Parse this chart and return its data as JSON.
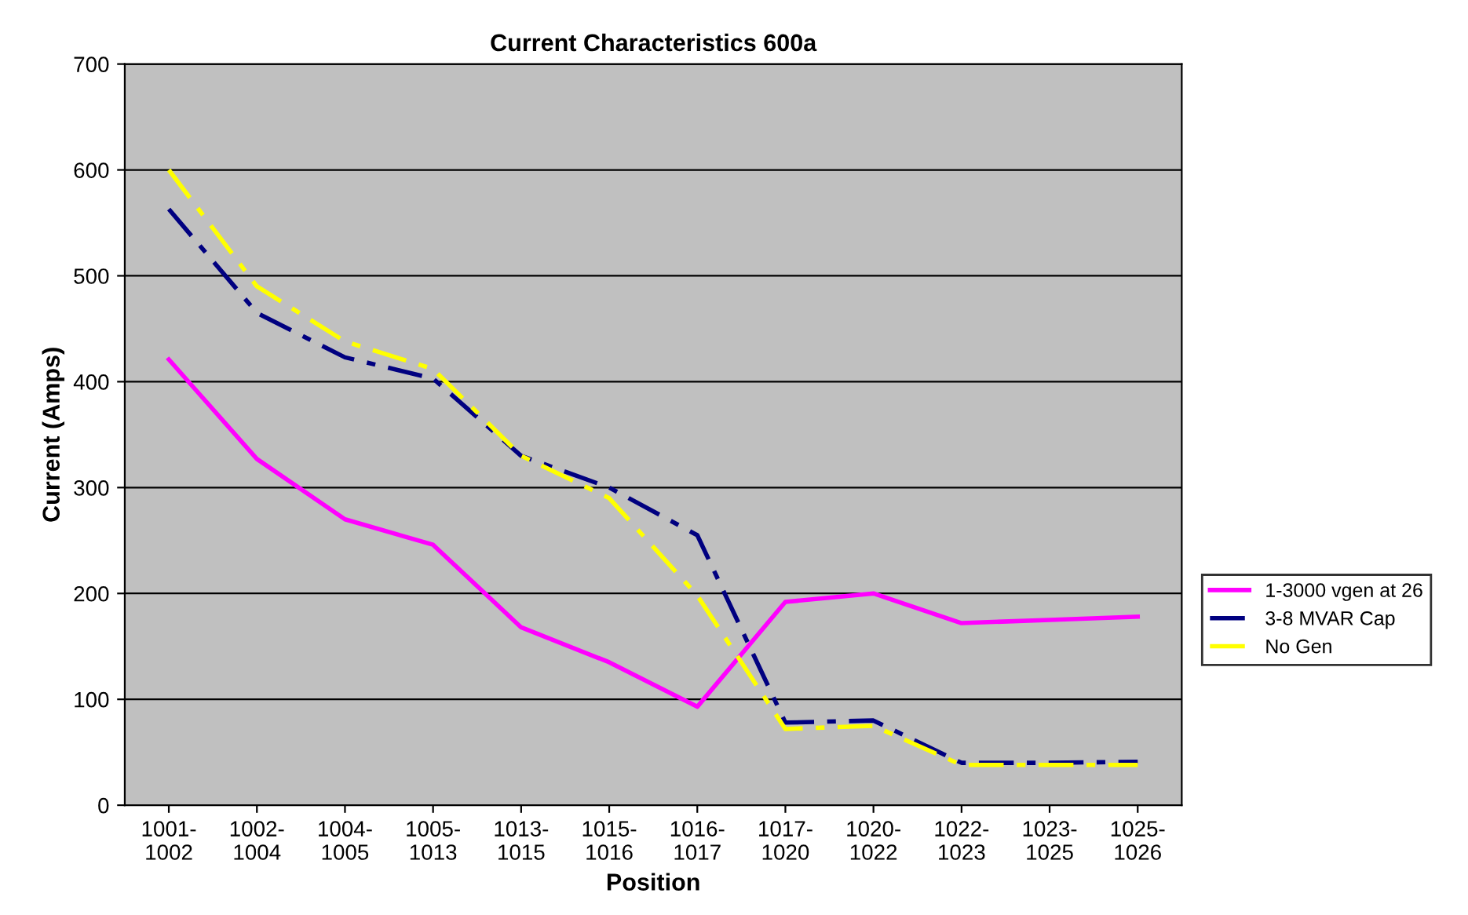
{
  "chart_data": {
    "type": "line",
    "title": "Current Characteristics 600a",
    "xlabel": "Position",
    "ylabel": "Current (Amps)",
    "categories": [
      "1001-\n1002",
      "1002-\n1004",
      "1004-\n1005",
      "1005-\n1013",
      "1013-\n1015",
      "1015-\n1016",
      "1016-\n1017",
      "1017-\n1020",
      "1020-\n1022",
      "1022-\n1023",
      "1023-\n1025",
      "1025-\n1026"
    ],
    "series": [
      {
        "name": "1-3000 vgen at 26",
        "color": "#ff00ff",
        "line_style": "solid",
        "values": [
          421,
          327,
          270,
          246,
          168,
          135,
          93,
          192,
          200,
          172,
          175,
          178
        ]
      },
      {
        "name": "3-8 MVAR Cap",
        "color": "#000080",
        "line_style": "dashed",
        "values": [
          563,
          465,
          423,
          403,
          330,
          300,
          255,
          78,
          80,
          40,
          40,
          41
        ]
      },
      {
        "name": "No Gen",
        "color": "#ffff00",
        "line_style": "dashed",
        "values": [
          600,
          490,
          438,
          412,
          330,
          290,
          198,
          72,
          75,
          38,
          38,
          38
        ]
      }
    ],
    "ylim": [
      0,
      700
    ],
    "yticks": [
      0,
      100,
      200,
      300,
      400,
      500,
      600,
      700
    ],
    "grid": "y",
    "legend": "right",
    "marker": "none"
  }
}
